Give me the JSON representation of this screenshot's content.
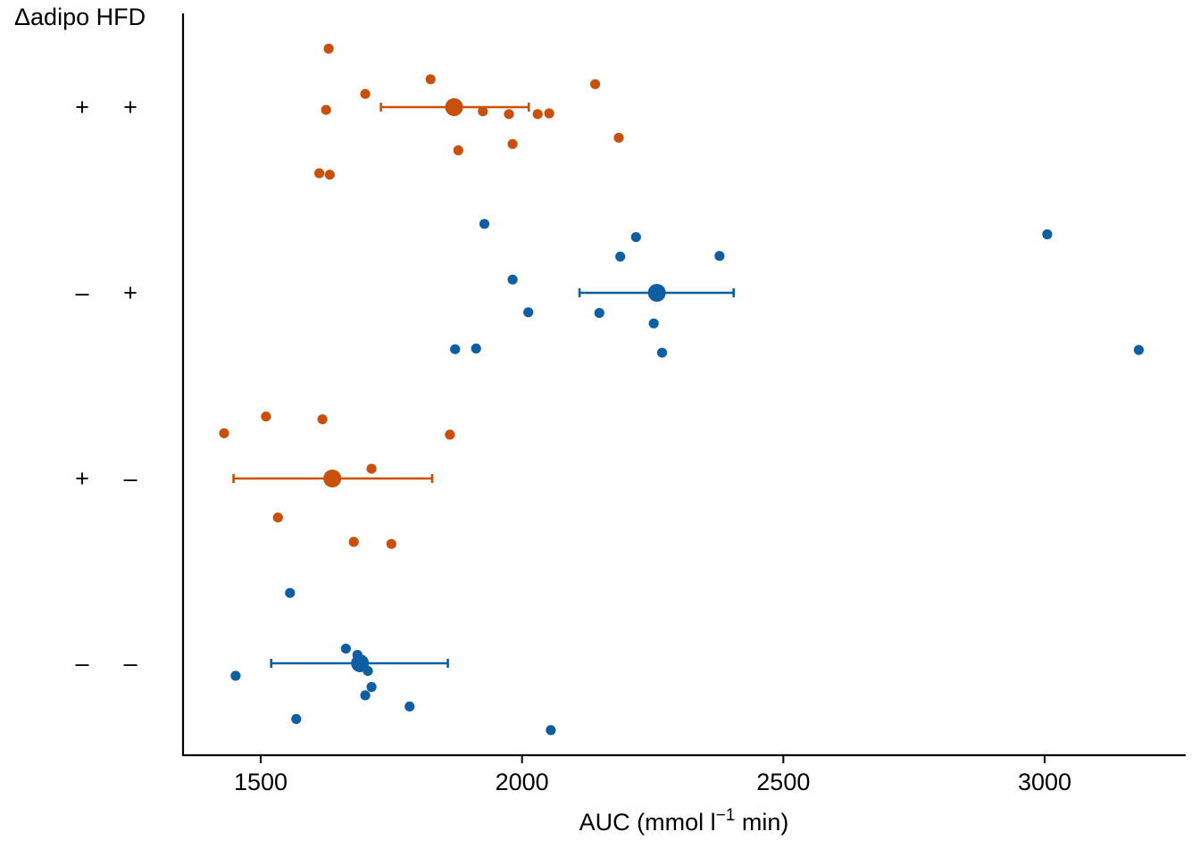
{
  "chart_data": {
    "type": "scatter",
    "title": "",
    "xlabel": {
      "main": "AUC (mmol l",
      "superscript": "−1",
      "suffix": " min)"
    },
    "ylabel": "",
    "factor_header": "Δadipo HFD",
    "xlim": [
      1350,
      3270
    ],
    "x_ticks": [
      1500,
      2000,
      2500,
      3000
    ],
    "x_tick_labels": [
      "1500",
      "2000",
      "2500",
      "3000"
    ],
    "grid": false,
    "legend": "none",
    "colors": {
      "orange": "#c8500a",
      "blue": "#0e5ea3"
    },
    "groups": [
      {
        "row_labels": [
          "+",
          "+"
        ],
        "color": "orange",
        "mean": 1870,
        "ci": [
          1730,
          2013
        ],
        "points": [
          {
            "x": 1630,
            "jitter": 0.84
          },
          {
            "x": 1825,
            "jitter": 0.4
          },
          {
            "x": 2140,
            "jitter": 0.33
          },
          {
            "x": 1700,
            "jitter": 0.19
          },
          {
            "x": 1625,
            "jitter": -0.04
          },
          {
            "x": 1925,
            "jitter": -0.06
          },
          {
            "x": 1975,
            "jitter": -0.1
          },
          {
            "x": 2030,
            "jitter": -0.1
          },
          {
            "x": 2052,
            "jitter": -0.09
          },
          {
            "x": 2185,
            "jitter": -0.44
          },
          {
            "x": 1982,
            "jitter": -0.53
          },
          {
            "x": 1878,
            "jitter": -0.62
          },
          {
            "x": 1612,
            "jitter": -0.95
          },
          {
            "x": 1632,
            "jitter": -0.97
          }
        ]
      },
      {
        "row_labels": [
          "–",
          "+"
        ],
        "color": "blue",
        "mean": 2258,
        "ci": [
          2110,
          2405
        ],
        "points": [
          {
            "x": 1928,
            "jitter": 0.99
          },
          {
            "x": 2218,
            "jitter": 0.8
          },
          {
            "x": 3005,
            "jitter": 0.84
          },
          {
            "x": 2188,
            "jitter": 0.52
          },
          {
            "x": 2378,
            "jitter": 0.53
          },
          {
            "x": 1982,
            "jitter": 0.19
          },
          {
            "x": 2012,
            "jitter": -0.28
          },
          {
            "x": 2148,
            "jitter": -0.29
          },
          {
            "x": 2252,
            "jitter": -0.44
          },
          {
            "x": 1872,
            "jitter": -0.81
          },
          {
            "x": 1912,
            "jitter": -0.8
          },
          {
            "x": 2268,
            "jitter": -0.86
          },
          {
            "x": 3180,
            "jitter": -0.82
          }
        ]
      },
      {
        "row_labels": [
          "+",
          "–"
        ],
        "color": "orange",
        "mean": 1637,
        "ci": [
          1448,
          1828
        ],
        "points": [
          {
            "x": 1510,
            "jitter": 0.89
          },
          {
            "x": 1618,
            "jitter": 0.85
          },
          {
            "x": 1430,
            "jitter": 0.65
          },
          {
            "x": 1862,
            "jitter": 0.63
          },
          {
            "x": 1712,
            "jitter": 0.14
          },
          {
            "x": 1533,
            "jitter": -0.56
          },
          {
            "x": 1678,
            "jitter": -0.91
          },
          {
            "x": 1750,
            "jitter": -0.94
          }
        ]
      },
      {
        "row_labels": [
          "–",
          "–"
        ],
        "color": "blue",
        "mean": 1690,
        "ci": [
          1520,
          1858
        ],
        "points": [
          {
            "x": 1556,
            "jitter": 1.01
          },
          {
            "x": 1663,
            "jitter": 0.21
          },
          {
            "x": 1685,
            "jitter": 0.12
          },
          {
            "x": 1705,
            "jitter": -0.11
          },
          {
            "x": 1452,
            "jitter": -0.18
          },
          {
            "x": 1712,
            "jitter": -0.34
          },
          {
            "x": 1700,
            "jitter": -0.46
          },
          {
            "x": 1785,
            "jitter": -0.62
          },
          {
            "x": 1568,
            "jitter": -0.8
          },
          {
            "x": 2055,
            "jitter": -0.96
          }
        ]
      }
    ]
  }
}
